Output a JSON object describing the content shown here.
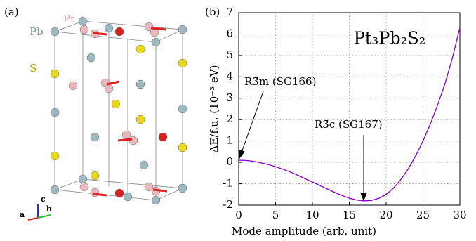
{
  "structure": {
    "panel_label": "(a)",
    "atoms": [
      "Pt",
      "Pb",
      "S"
    ],
    "axes": [
      "a",
      "b",
      "c"
    ]
  },
  "chart_data": {
    "type": "line",
    "panel_label": "(b)",
    "xlabel": "Mode amplitude (arb. unit)",
    "ylabel": "ΔE/f.u. (10⁻³ eV)",
    "annotations": [
      "Pt₃Pb₂S₂",
      "R3̄m (SG166)",
      "R3̄c (SG167)"
    ],
    "x": [
      0,
      1,
      2,
      3,
      4,
      5,
      6,
      7,
      8,
      9,
      10,
      11,
      12,
      13,
      14,
      15,
      16,
      17,
      18,
      19,
      20,
      21,
      22,
      23,
      24,
      25,
      26,
      27,
      28,
      29,
      30
    ],
    "values": [
      0.1,
      0.09,
      0.05,
      -0.02,
      -0.1,
      -0.2,
      -0.32,
      -0.45,
      -0.6,
      -0.76,
      -0.92,
      -1.08,
      -1.24,
      -1.4,
      -1.55,
      -1.67,
      -1.76,
      -1.8,
      -1.78,
      -1.68,
      -1.5,
      -1.2,
      -0.8,
      -0.3,
      0.3,
      1.0,
      1.8,
      2.7,
      3.7,
      4.9,
      6.3
    ],
    "color": "#8a00c8",
    "xlim": [
      0,
      30
    ],
    "xticks": [
      0,
      5,
      10,
      15,
      20,
      25,
      30
    ],
    "ylim": [
      -2,
      7
    ],
    "yticks": [
      -2,
      -1,
      0,
      1,
      2,
      3,
      4,
      5,
      6,
      7
    ],
    "grid": true
  }
}
